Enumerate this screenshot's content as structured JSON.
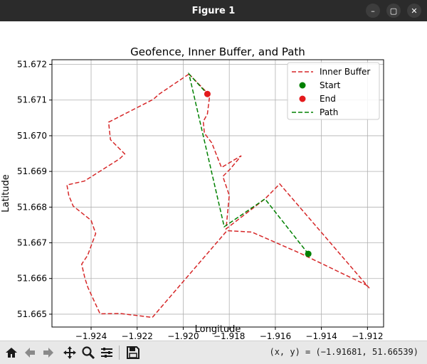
{
  "window": {
    "title": "Figure 1",
    "minimize_glyph": "–",
    "maximize_glyph": "▢",
    "close_glyph": "✕"
  },
  "toolbar": {
    "icons": [
      "home-icon",
      "back-arrow-icon",
      "forward-arrow-icon",
      "pan-icon",
      "zoom-icon",
      "configure-subplots-icon",
      "save-icon"
    ],
    "coordinates_readout": "(x, y) = (−1.91681, 51.66539)"
  },
  "colors": {
    "buffer": "#d62728",
    "path": "#008000",
    "start": "#008000",
    "end": "#e41a1c",
    "grid": "#b0b0b0"
  },
  "chart_data": {
    "type": "line",
    "title": "Geofence, Inner Buffer, and Path",
    "xlabel": "Longitude",
    "ylabel": "Latitude",
    "xlim": [
      -1.9257,
      -1.9113
    ],
    "ylim": [
      51.66464,
      51.67213
    ],
    "xticks": [
      -1.924,
      -1.922,
      -1.92,
      -1.918,
      -1.916,
      -1.914,
      -1.912
    ],
    "xtick_labels": [
      "−1.924",
      "−1.922",
      "−1.920",
      "−1.918",
      "−1.916",
      "−1.914",
      "−1.912"
    ],
    "yticks": [
      51.665,
      51.666,
      51.667,
      51.668,
      51.669,
      51.67,
      51.671,
      51.672
    ],
    "ytick_labels": [
      "51.665",
      "51.666",
      "51.667",
      "51.668",
      "51.669",
      "51.670",
      "51.671",
      "51.672"
    ],
    "grid": true,
    "legend_position": "top-right",
    "series": [
      {
        "name": "Inner Buffer",
        "style": "dashed",
        "x": [
          -1.91975,
          -1.91885,
          -1.91895,
          -1.91913,
          -1.91908,
          -1.91876,
          -1.91834,
          -1.91748,
          -1.91797,
          -1.91828,
          -1.918,
          -1.91814,
          -1.91645,
          -1.91581,
          -1.91192,
          -1.91206,
          -1.91493,
          -1.91702,
          -1.9181,
          -1.92134,
          -1.92274,
          -1.92361,
          -1.92414,
          -1.92427,
          -1.92441,
          -1.92415,
          -1.9238,
          -1.924,
          -1.92478,
          -1.92497,
          -1.92505,
          -1.92429,
          -1.92277,
          -1.92254,
          -1.92316,
          -1.92324,
          -1.9213,
          -1.92106
        ],
        "y": [
          51.67173,
          51.67113,
          51.67061,
          51.6704,
          51.67007,
          51.6698,
          51.66911,
          51.66944,
          51.66906,
          51.66886,
          51.66833,
          51.66739,
          51.66823,
          51.66865,
          51.66573,
          51.66582,
          51.66671,
          51.6673,
          51.66734,
          51.66491,
          51.66502,
          51.66501,
          51.66575,
          51.66601,
          51.6664,
          51.66665,
          51.66726,
          51.66763,
          51.66803,
          51.66833,
          51.66862,
          51.66873,
          51.66935,
          51.66949,
          51.66989,
          51.67038,
          51.67102,
          51.67116
        ]
      },
      {
        "name": "Start",
        "style": "point",
        "x": [
          -1.91457
        ],
        "y": [
          51.66669
        ]
      },
      {
        "name": "End",
        "style": "point",
        "x": [
          -1.91895
        ],
        "y": [
          51.67117
        ]
      },
      {
        "name": "Path",
        "style": "dashed",
        "x": [
          -1.91457,
          -1.91645,
          -1.91822,
          -1.91975,
          -1.91895
        ],
        "y": [
          51.66669,
          51.66823,
          51.66745,
          51.67173,
          51.67117
        ]
      }
    ]
  }
}
